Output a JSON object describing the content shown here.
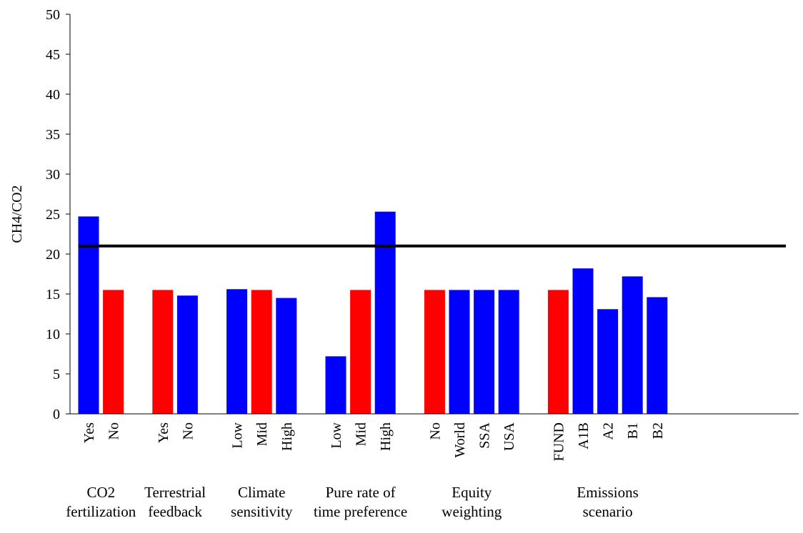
{
  "chart_data": {
    "type": "bar",
    "ylabel": "CH4/CO2",
    "ylim": [
      0,
      50
    ],
    "ytick_step": 5,
    "reference_line": 21,
    "colors": {
      "blue": "#0000ff",
      "red": "#ff0000",
      "line": "#000000"
    },
    "groups": [
      {
        "label": [
          "CO2",
          "fertilization"
        ],
        "bars": [
          {
            "category": "Yes",
            "value": 24.7,
            "color": "blue"
          },
          {
            "category": "No",
            "value": 15.5,
            "color": "red"
          }
        ]
      },
      {
        "label": [
          "Terrestrial",
          "feedback"
        ],
        "bars": [
          {
            "category": "Yes",
            "value": 15.5,
            "color": "red"
          },
          {
            "category": "No",
            "value": 14.8,
            "color": "blue"
          }
        ]
      },
      {
        "label": [
          "Climate",
          "sensitivity"
        ],
        "bars": [
          {
            "category": "Low",
            "value": 15.6,
            "color": "blue"
          },
          {
            "category": "Mid",
            "value": 15.5,
            "color": "red"
          },
          {
            "category": "High",
            "value": 14.5,
            "color": "blue"
          }
        ]
      },
      {
        "label": [
          "Pure rate of",
          "time preference"
        ],
        "bars": [
          {
            "category": "Low",
            "value": 7.2,
            "color": "blue"
          },
          {
            "category": "Mid",
            "value": 15.5,
            "color": "red"
          },
          {
            "category": "High",
            "value": 25.3,
            "color": "blue"
          }
        ]
      },
      {
        "label": [
          "Equity",
          "weighting"
        ],
        "bars": [
          {
            "category": "No",
            "value": 15.5,
            "color": "red"
          },
          {
            "category": "World",
            "value": 15.5,
            "color": "blue"
          },
          {
            "category": "SSA",
            "value": 15.5,
            "color": "blue"
          },
          {
            "category": "USA",
            "value": 15.5,
            "color": "blue"
          }
        ]
      },
      {
        "label": [
          "Emissions",
          "scenario"
        ],
        "bars": [
          {
            "category": "FUND",
            "value": 15.5,
            "color": "red"
          },
          {
            "category": "A1B",
            "value": 18.2,
            "color": "blue"
          },
          {
            "category": "A2",
            "value": 13.1,
            "color": "blue"
          },
          {
            "category": "B1",
            "value": 17.2,
            "color": "blue"
          },
          {
            "category": "B2",
            "value": 14.6,
            "color": "blue"
          }
        ]
      }
    ]
  }
}
